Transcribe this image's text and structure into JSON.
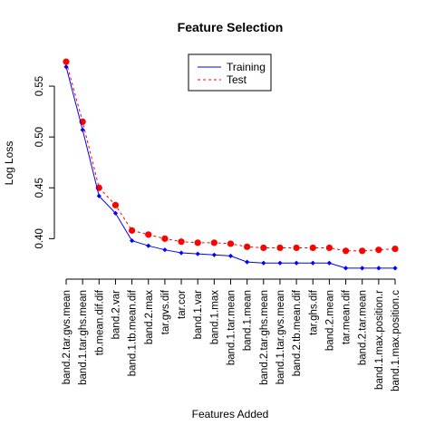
{
  "chart_data": {
    "type": "line",
    "title": "Feature Selection",
    "xlabel": "Features Added",
    "ylabel": "Log Loss",
    "categories": [
      "band.2.tar.gvs.mean",
      "band.1.tar.ghs.mean",
      "tb.mean.dif.dif",
      "band.2.var",
      "band.1.tb.mean.dif",
      "band.2.max",
      "tar.gvs.dif",
      "tar.cor",
      "band.1.var",
      "band.1.max",
      "band.1.tar.mean",
      "band.1.mean",
      "band.2.tar.ghs.mean",
      "band.1.tar.gvs.mean",
      "band.2.tb.mean.dif",
      "tar.ghs.dif",
      "band.2.mean",
      "tar.mean.dif",
      "band.2.tar.mean",
      "band.1.max.position.r",
      "band.1.max.position.c"
    ],
    "y_ticks": [
      0.4,
      0.45,
      0.5,
      0.55
    ],
    "ylim": [
      0.37,
      0.575
    ],
    "legend_position": "top-center",
    "series": [
      {
        "name": "Training",
        "color": "#0000ff",
        "line_style": "solid",
        "marker": "diamond",
        "values": [
          0.569,
          0.507,
          0.442,
          0.425,
          0.398,
          0.393,
          0.389,
          0.386,
          0.385,
          0.384,
          0.383,
          0.377,
          0.376,
          0.376,
          0.376,
          0.376,
          0.376,
          0.371,
          0.371,
          0.371,
          0.371
        ]
      },
      {
        "name": "Test",
        "color": "#ff0000",
        "line_style": "dashed",
        "marker": "circle",
        "values": [
          0.574,
          0.515,
          0.45,
          0.433,
          0.408,
          0.404,
          0.4,
          0.397,
          0.396,
          0.396,
          0.395,
          0.392,
          0.391,
          0.391,
          0.391,
          0.391,
          0.391,
          0.388,
          0.388,
          0.389,
          0.39
        ]
      }
    ]
  }
}
